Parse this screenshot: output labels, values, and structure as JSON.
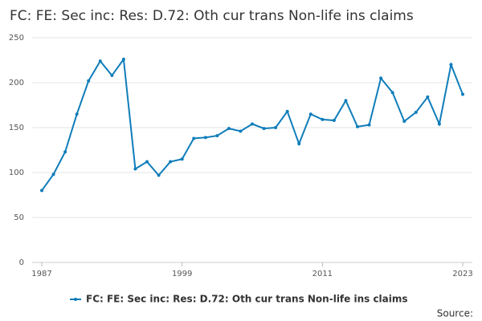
{
  "chart_data": {
    "type": "line",
    "title": "FC: FE: Sec inc: Res: D.72: Oth cur trans Non-life ins claims",
    "x": [
      1987,
      1988,
      1989,
      1990,
      1991,
      1992,
      1993,
      1994,
      1995,
      1996,
      1997,
      1998,
      1999,
      2000,
      2001,
      2002,
      2003,
      2004,
      2005,
      2006,
      2007,
      2008,
      2009,
      2010,
      2011,
      2012,
      2013,
      2014,
      2015,
      2016,
      2017,
      2018,
      2019,
      2020,
      2021,
      2022,
      2023
    ],
    "series": [
      {
        "name": "FC: FE: Sec inc: Res: D.72: Oth cur trans Non-life ins claims",
        "color": "#0f7dba",
        "values": [
          80,
          98,
          123,
          165,
          202,
          224,
          208,
          226,
          104,
          112,
          97,
          112,
          115,
          138,
          139,
          141,
          149,
          146,
          154,
          149,
          150,
          168,
          132,
          165,
          159,
          158,
          180,
          151,
          153,
          205,
          189,
          157,
          167,
          184,
          154,
          220,
          187
        ]
      }
    ],
    "xlim": [
      1987,
      2023
    ],
    "xticks": [
      1987,
      1999,
      2011,
      2023
    ],
    "ylim": [
      0,
      250
    ],
    "yticks": [
      0,
      50,
      100,
      150,
      200,
      250
    ],
    "grid": true,
    "legend": "bottom",
    "source": "Source:"
  }
}
